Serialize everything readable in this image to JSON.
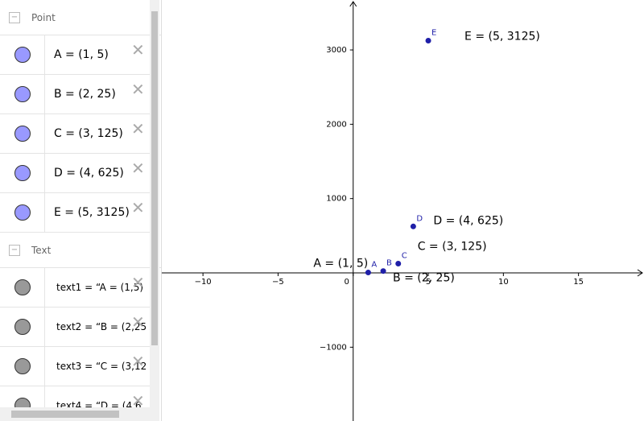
{
  "algebra": {
    "groups": [
      {
        "title": "Point",
        "items": [
          "A = (1, 5)",
          "B = (2, 25)",
          "C = (3, 125)",
          "D = (4, 625)",
          "E = (5, 3125)"
        ]
      },
      {
        "title": "Text",
        "items": [
          "text1 = “A = (1,5)",
          "text2 = “B = (2,25",
          "text3 = “C = (3,12",
          "text4 = “D = (4,6"
        ]
      }
    ]
  },
  "graph": {
    "xlim": [
      -12.74,
      19.36
    ],
    "ylim": [
      -1993,
      3672
    ],
    "xticks": [
      {
        "value": -10,
        "label": "−10"
      },
      {
        "value": -5,
        "label": "−5"
      },
      0,
      5,
      10,
      15
    ],
    "yticks": [
      {
        "value": -1000,
        "label": "−1000"
      },
      1000,
      2000,
      3000
    ],
    "points": [
      {
        "label": "A",
        "x": 1,
        "y": 5
      },
      {
        "label": "B",
        "x": 2,
        "y": 25
      },
      {
        "label": "C",
        "x": 3,
        "y": 125
      },
      {
        "label": "D",
        "x": 4,
        "y": 625
      },
      {
        "label": "E",
        "x": 5,
        "y": 3125
      }
    ],
    "point_color": "#1f1fa8",
    "texts": [
      "A = (1, 5)",
      "B = (2, 25)",
      "C = (3, 125)",
      "D = (4, 625)",
      "E = (5, 3125)"
    ]
  }
}
